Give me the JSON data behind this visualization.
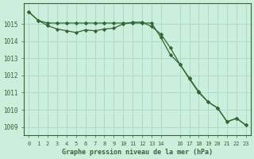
{
  "title": "Graphe pression niveau de la mer (hPa)",
  "bg_color": "#cceedd",
  "grid_color": "#aaddcc",
  "line_color": "#336633",
  "xlim": [
    -0.5,
    23.5
  ],
  "ylim": [
    1008.5,
    1016.2
  ],
  "yticks": [
    1009,
    1010,
    1011,
    1012,
    1013,
    1014,
    1015
  ],
  "xticks": [
    0,
    1,
    2,
    3,
    4,
    5,
    6,
    7,
    8,
    9,
    10,
    11,
    12,
    13,
    14,
    16,
    17,
    18,
    19,
    20,
    21,
    22,
    23
  ],
  "xtick_labels": [
    "0",
    "1",
    "2",
    "3",
    "4",
    "5",
    "6",
    "7",
    "8",
    "9",
    "10",
    "11",
    "12",
    "13",
    "14",
    "16",
    "17",
    "18",
    "19",
    "20",
    "21",
    "22",
    "23"
  ],
  "series1": [
    1015.7,
    1015.2,
    1014.9,
    1014.7,
    1014.6,
    1014.5,
    1014.65,
    1014.6,
    1014.7,
    1014.75,
    1015.0,
    1015.1,
    1015.1,
    1014.85,
    1014.4,
    1013.6,
    1012.65,
    1011.8,
    1011.0,
    1010.45,
    1010.1,
    1009.3,
    1009.5,
    1009.1
  ],
  "series2": [
    1015.7,
    1015.2,
    1015.05,
    1015.05,
    1015.05,
    1015.05,
    1015.05,
    1015.05,
    1015.05,
    1015.05,
    1015.05,
    1015.05,
    1015.05,
    1015.05,
    1014.2,
    1013.2,
    1012.65,
    1011.85,
    1011.05,
    1010.45,
    1010.1,
    1009.3,
    1009.5,
    1009.1
  ]
}
